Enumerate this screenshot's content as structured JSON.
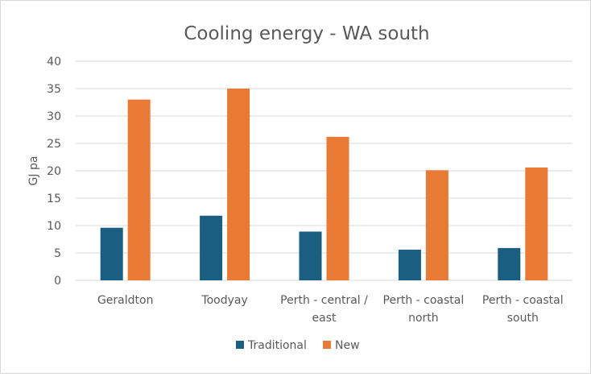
{
  "chart_data": {
    "type": "bar",
    "title": "Cooling energy - WA south",
    "xlabel": "",
    "ylabel": "GJ pa",
    "ylim": [
      0,
      40
    ],
    "yticks": [
      0,
      5,
      10,
      15,
      20,
      25,
      30,
      35,
      40
    ],
    "categories": [
      [
        "Geraldton"
      ],
      [
        "Toodyay"
      ],
      [
        "Perth - central /",
        "east"
      ],
      [
        "Perth - coastal",
        "north"
      ],
      [
        "Perth - coastal",
        "south"
      ]
    ],
    "series": [
      {
        "name": "Traditional",
        "color": "#1a5f82",
        "values": [
          9.6,
          11.8,
          8.9,
          5.6,
          5.9
        ]
      },
      {
        "name": "New",
        "color": "#e97a35",
        "values": [
          33.0,
          35.0,
          26.2,
          20.1,
          20.6
        ]
      }
    ],
    "grid": true,
    "legend": "bottom"
  }
}
